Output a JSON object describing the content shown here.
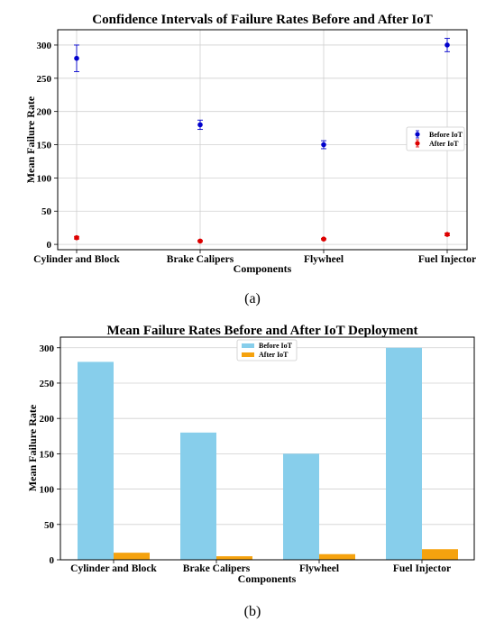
{
  "chart_data": [
    {
      "type": "scatter",
      "title": "Confidence Intervals of Failure Rates Before and After IoT",
      "xlabel": "Components",
      "ylabel": "Mean Failure Rate",
      "caption": "(a)",
      "categories": [
        "Cylinder and Block",
        "Brake Calipers",
        "Flywheel",
        "Fuel Injector"
      ],
      "ylim": [
        -8,
        323
      ],
      "yticks": [
        0,
        50,
        100,
        150,
        200,
        250,
        300
      ],
      "grid": true,
      "legend_position": "center-right",
      "series": [
        {
          "name": "Before IoT",
          "color": "#0000cc",
          "values": [
            280,
            180,
            150,
            300
          ],
          "errors": [
            20,
            7,
            6,
            10
          ]
        },
        {
          "name": "After IoT",
          "color": "#dd0000",
          "values": [
            10,
            5,
            8,
            15
          ],
          "errors": [
            2,
            1,
            1,
            2
          ]
        }
      ]
    },
    {
      "type": "bar",
      "title": "Mean Failure Rates Before and After IoT Deployment",
      "xlabel": "Components",
      "ylabel": "Mean Failure Rate",
      "caption": "(b)",
      "categories": [
        "Cylinder and Block",
        "Brake Calipers",
        "Flywheel",
        "Fuel Injector"
      ],
      "ylim": [
        0,
        315
      ],
      "yticks": [
        0,
        50,
        100,
        150,
        200,
        250,
        300
      ],
      "grid": true,
      "legend_position": "top-center",
      "series": [
        {
          "name": "Before IoT",
          "color": "#87ceeb",
          "values": [
            280,
            180,
            150,
            300
          ]
        },
        {
          "name": "After IoT",
          "color": "#f5a20e",
          "values": [
            10,
            5,
            8,
            15
          ]
        }
      ]
    }
  ]
}
